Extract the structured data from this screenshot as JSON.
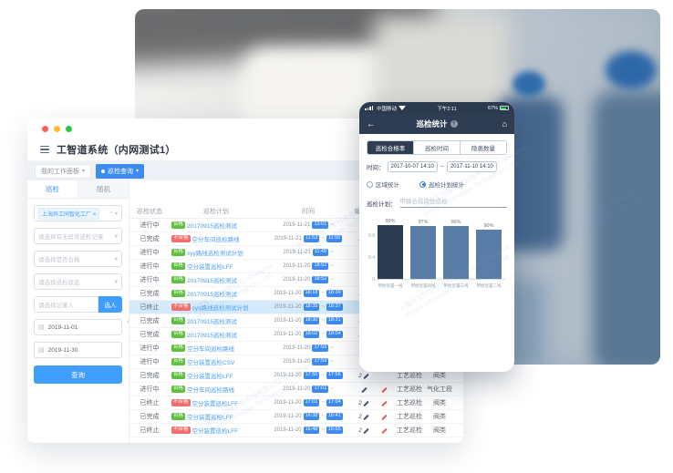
{
  "icons": {
    "caret": "▾",
    "close": "×",
    "calendar": "▤",
    "collapse": "‹"
  },
  "watermark": {
    "combined": "上海异工同智信息科技有限公司 Shanghai Inroad Information Technology Co., Ltd."
  },
  "window": {
    "title": "工智道系统（内网测试1）",
    "workspace_tabs": [
      {
        "label": "我的工作面板",
        "active": false
      },
      {
        "label": "巡检查询",
        "active": true
      }
    ],
    "sidebar": {
      "tabs": [
        {
          "label": "巡检"
        },
        {
          "label": "随机"
        }
      ],
      "org_tag": "上海异工同智化工厂",
      "selects": [
        "请选择有无异常巡检记录",
        "请选择是否合格",
        "请选择巡检状态"
      ],
      "person_placeholder": "请选择记录人",
      "pick_person_button": "选人",
      "date_from": "2019-11-01",
      "date_to": "2019-11-30",
      "search_button": "查询"
    },
    "table": {
      "headers": [
        "巡检状态",
        "巡检计划",
        "时间",
        "编写人",
        "",
        "",
        ""
      ],
      "time_sep": "~",
      "rows": [
        {
          "status": "进行中",
          "badge": "合格",
          "pass": true,
          "plan": "20170915巡检测试",
          "date": "2019-11-21",
          "start": "13:01",
          "end": "",
          "people": "",
          "hazard": false,
          "type": "",
          "area": "",
          "selected": false
        },
        {
          "status": "已完成",
          "badge": "不合格",
          "pass": false,
          "plan": "空分车间巡检路线",
          "date": "2019-11-21",
          "start": "11:53",
          "end": "11:56",
          "people": "2",
          "hazard": false,
          "type": "",
          "area": "",
          "selected": false
        },
        {
          "status": "进行中",
          "badge": "合格",
          "pass": true,
          "plan": "xyy路线巡检测试计划",
          "date": "2019-11-21",
          "start": "11:49",
          "end": "",
          "people": "",
          "hazard": false,
          "type": "",
          "area": "",
          "selected": false
        },
        {
          "status": "进行中",
          "badge": "合格",
          "pass": true,
          "plan": "空分装置巡检LFF",
          "date": "2019-11-20",
          "start": "18:52",
          "end": "",
          "people": "",
          "hazard": false,
          "type": "",
          "area": "",
          "selected": false
        },
        {
          "status": "进行中",
          "badge": "合格",
          "pass": true,
          "plan": "20170915巡检测试",
          "date": "2019-11-20",
          "start": "18:52",
          "end": "",
          "people": "",
          "hazard": false,
          "type": "",
          "area": "",
          "selected": false
        },
        {
          "status": "已完成",
          "badge": "合格",
          "pass": true,
          "plan": "20170915巡检测试",
          "date": "2019-11-20",
          "start": "18:18",
          "end": "18:39",
          "people": "2",
          "hazard": false,
          "type": "",
          "area": "",
          "selected": false
        },
        {
          "status": "已终止",
          "badge": "不合格",
          "pass": false,
          "plan": "cyq路线巡检测试计划",
          "date": "2019-11-20",
          "start": "18:35",
          "end": "18:37",
          "people": "",
          "hazard": false,
          "type": "",
          "area": "",
          "selected": true
        },
        {
          "status": "已完成",
          "badge": "合格",
          "pass": true,
          "plan": "20170915巡检测试",
          "date": "2019-11-20",
          "start": "18:30",
          "end": "18:31",
          "people": "2",
          "hazard": false,
          "type": "",
          "area": "",
          "selected": false
        },
        {
          "status": "已完成",
          "badge": "合格",
          "pass": true,
          "plan": "20170915巡检测试",
          "date": "2019-11-20",
          "start": "18:02",
          "end": "18:04",
          "people": "2",
          "hazard": false,
          "type": "",
          "area": "",
          "selected": false
        },
        {
          "status": "进行中",
          "badge": "合格",
          "pass": true,
          "plan": "空分车间巡检路线",
          "date": "2019-11-20",
          "start": "17:59",
          "end": "",
          "people": "",
          "hazard": false,
          "type": "",
          "area": "",
          "selected": false
        },
        {
          "status": "进行中",
          "badge": "合格",
          "pass": true,
          "plan": "空分装置巡检CSV",
          "date": "2019-11-20",
          "start": "17:59",
          "end": "",
          "people": "",
          "hazard": false,
          "type": "",
          "area": "",
          "selected": false
        },
        {
          "status": "已完成",
          "badge": "合格",
          "pass": true,
          "plan": "空分装置巡检LFF",
          "date": "2019-11-20",
          "start": "17:55",
          "end": "17:56",
          "people": "2",
          "hazard": false,
          "type": "工艺巡检",
          "area": "阀类",
          "selected": false
        },
        {
          "status": "进行中",
          "badge": "合格",
          "pass": true,
          "plan": "空分车间巡检路线",
          "date": "2019-11-20",
          "start": "17:01",
          "end": "",
          "people": "",
          "hazard": true,
          "type": "工艺巡检",
          "area": "气化工段",
          "selected": false
        },
        {
          "status": "已终止",
          "badge": "不合格",
          "pass": false,
          "plan": "空分装置巡检LFF",
          "date": "2019-11-20",
          "start": "17:01",
          "end": "17:04",
          "people": "2",
          "hazard": true,
          "type": "工艺巡检",
          "area": "阀类",
          "selected": false
        },
        {
          "status": "已完成",
          "badge": "合格",
          "pass": true,
          "plan": "空分装置巡检LFF",
          "date": "2019-11-20",
          "start": "16:38",
          "end": "16:41",
          "people": "2",
          "hazard": true,
          "type": "工艺巡检",
          "area": "阀类",
          "selected": false
        },
        {
          "status": "已终止",
          "badge": "不合格",
          "pass": false,
          "plan": "空分装置巡检LFF",
          "date": "2019-11-20",
          "start": "16:48",
          "end": "16:55",
          "people": "2",
          "hazard": true,
          "type": "工艺巡检",
          "area": "阀类",
          "selected": false
        }
      ]
    }
  },
  "phone": {
    "status_bar": {
      "carrier": "中国移动",
      "time": "下午2:11",
      "battery": "67%"
    },
    "nav": {
      "back_icon": "←",
      "title": "巡检统计",
      "info_icon": "?",
      "home_icon": "⌂"
    },
    "segments": [
      {
        "label": "巡检合格率",
        "active": true
      },
      {
        "label": "巡检时间",
        "active": false
      },
      {
        "label": "隐患数量",
        "active": false
      }
    ],
    "time_label": "时间：",
    "time_from": "2017-10-07 14:10",
    "time_sep": "~",
    "time_to": "2017-11-10 14:10",
    "radios": [
      {
        "label": "区域统计",
        "selected": false
      },
      {
        "label": "巡检计划统计",
        "selected": true
      }
    ],
    "plan_label": "巡检计划：",
    "plan_value": "甲醇合成岗位巡检",
    "chart_data": {
      "type": "bar",
      "categories": [
        "甲醇装置一线",
        "甲醇装置四线",
        "甲醇装置三线",
        "甲醇装置二线"
      ],
      "values": [
        0.99,
        0.97,
        0.96,
        0.9
      ],
      "labels": [
        "99%",
        "97%",
        "96%",
        "90%"
      ],
      "yticks": [
        "0.8",
        "0.4",
        "0"
      ],
      "ylim": [
        0,
        1
      ],
      "bar_colors": [
        "#2b3b52",
        "#5a7da8",
        "#5a7da8",
        "#5a7da8"
      ],
      "title": "",
      "xlabel": "",
      "ylabel": ""
    }
  }
}
